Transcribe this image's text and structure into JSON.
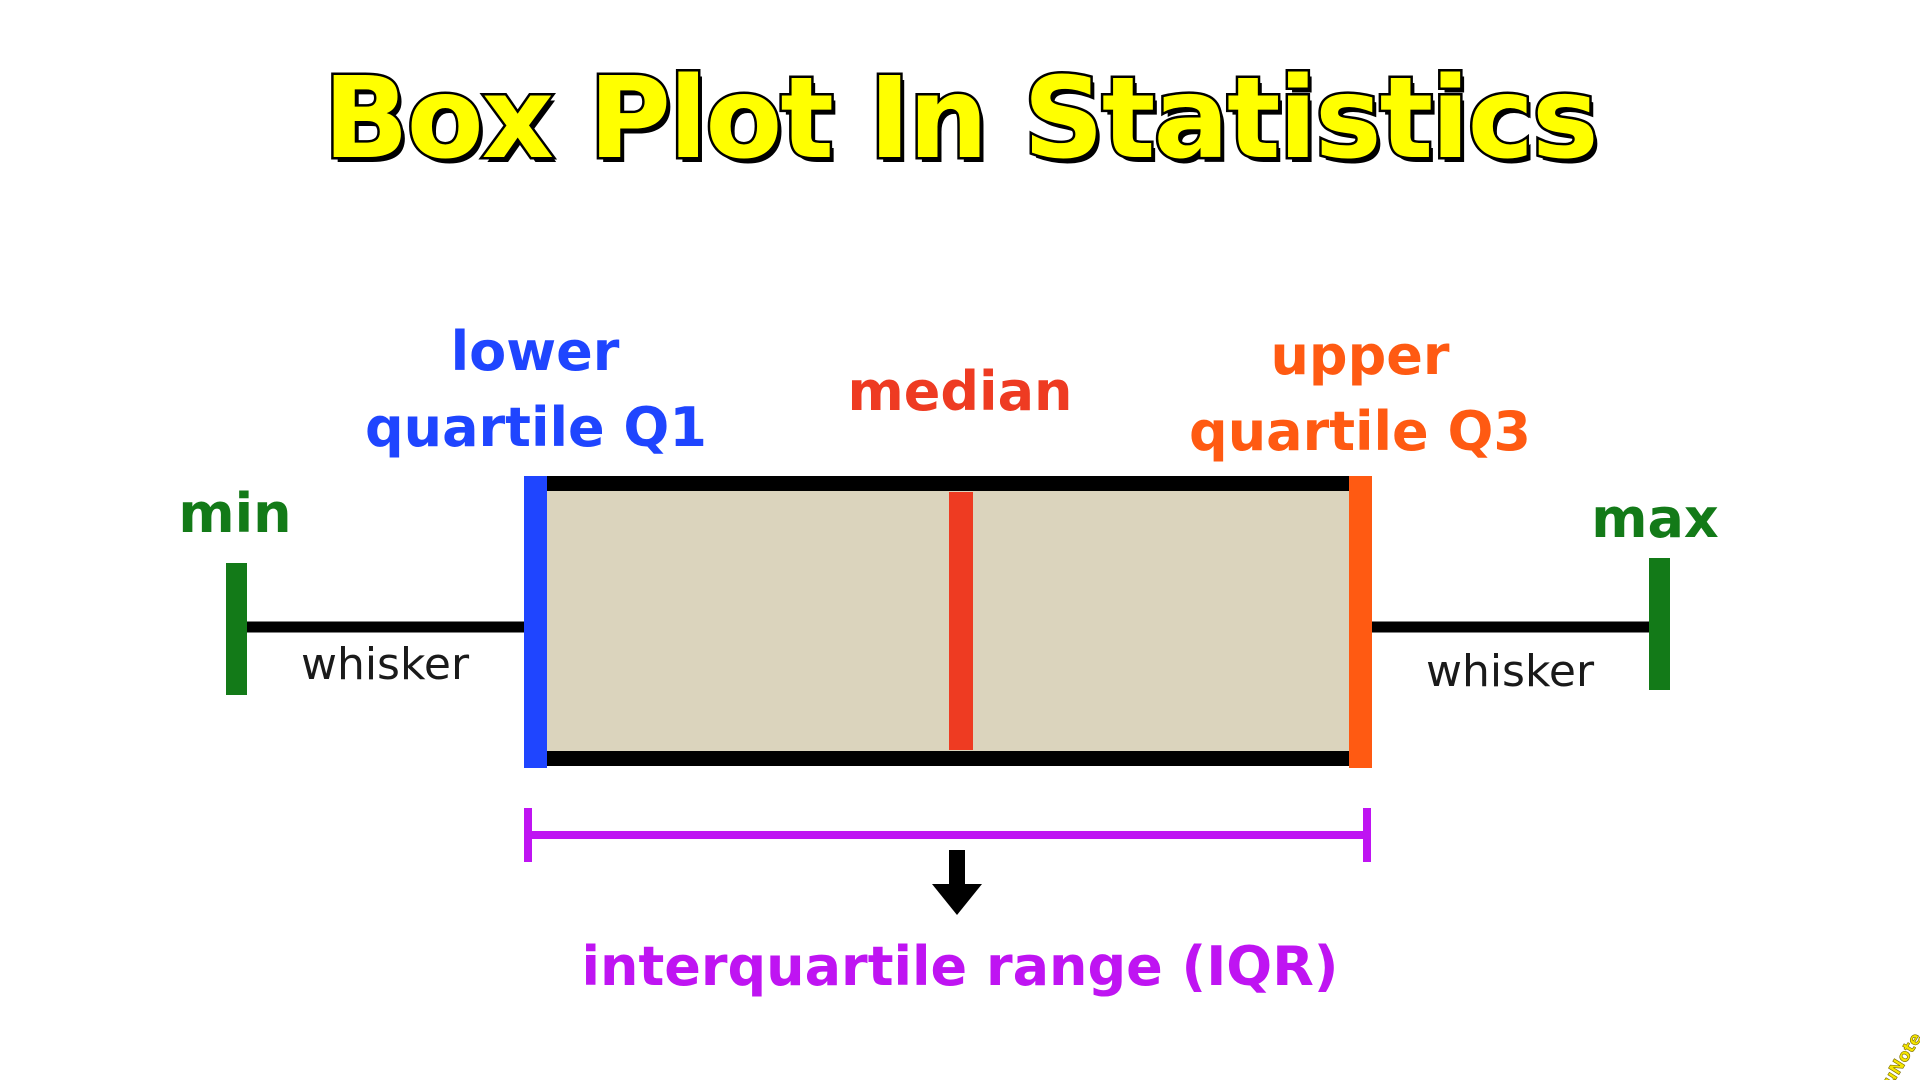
{
  "title": "Box Plot In Statistics",
  "labels": {
    "lower_q1_line1": "lower",
    "lower_q1_line2": "quartile Q1",
    "median": "median",
    "upper_q3_line1": "upper",
    "upper_q3_line2": "quartile Q3",
    "min": "min",
    "max": "max",
    "whisker_left": "whisker",
    "whisker_right": "whisker",
    "iqr": "interquartile range (IQR)"
  },
  "watermark": "EduNote",
  "colors": {
    "title_fill": "#ffff00",
    "title_outline": "#000000",
    "min_max": "#137a18",
    "q1": "#1f45ff",
    "median": "#ee3b22",
    "q3": "#ff5a12",
    "iqr": "#bf14f2",
    "box_fill": "#dbd4bd",
    "outline": "#000000",
    "whisker_text": "#1a1a1a"
  }
}
